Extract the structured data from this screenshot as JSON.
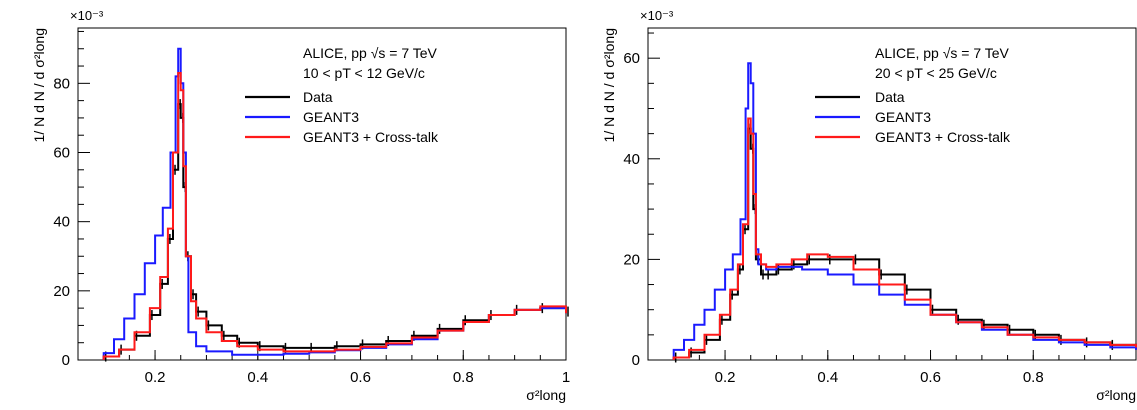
{
  "colors": {
    "data": "#000000",
    "geant3": "#1a1aff",
    "crosstalk": "#ff1a1a"
  },
  "chart_data": [
    {
      "type": "line",
      "exponent_label": "×10⁻³",
      "info_line1": "ALICE, pp √s = 7 TeV",
      "info_line2": "10 < pT < 12 GeV/c",
      "ylabel": "1/ N d N / d σ²long",
      "xlabel": "σ²long",
      "xlim": [
        0.05,
        1.0
      ],
      "ylim": [
        0,
        96
      ],
      "xticks": [
        0.2,
        0.4,
        0.6,
        0.8,
        1
      ],
      "xtick_labels": [
        "0.2",
        "0.4",
        "0.6",
        "0.8",
        "1"
      ],
      "yticks": [
        0,
        20,
        40,
        60,
        80
      ],
      "ytick_labels": [
        "0",
        "20",
        "40",
        "60",
        "80"
      ],
      "legend_position": "top-right",
      "legend": [
        "Data",
        "GEANT3",
        "GEANT3 + Cross-talk"
      ],
      "series": [
        {
          "name": "Data",
          "x": [
            0.1,
            0.13,
            0.16,
            0.19,
            0.21,
            0.225,
            0.235,
            0.245,
            0.25,
            0.255,
            0.26,
            0.27,
            0.28,
            0.3,
            0.33,
            0.36,
            0.4,
            0.45,
            0.5,
            0.55,
            0.6,
            0.65,
            0.7,
            0.75,
            0.8,
            0.85,
            0.9,
            0.95,
            1.0
          ],
          "y": [
            1,
            3,
            7,
            13,
            22,
            35,
            55,
            74,
            70,
            50,
            30,
            19,
            14,
            10,
            7,
            5,
            4,
            3.5,
            3.5,
            4,
            4.5,
            5.5,
            7,
            9,
            11.5,
            13,
            14.5,
            15,
            14
          ]
        },
        {
          "name": "GEANT3",
          "x": [
            0.1,
            0.12,
            0.14,
            0.16,
            0.18,
            0.2,
            0.215,
            0.23,
            0.24,
            0.245,
            0.25,
            0.255,
            0.26,
            0.265,
            0.28,
            0.3,
            0.35,
            0.4,
            0.45,
            0.5,
            0.55,
            0.6,
            0.65,
            0.7,
            0.75,
            0.8,
            0.85,
            0.9,
            0.95,
            1.0
          ],
          "y": [
            2,
            6,
            12,
            19,
            28,
            36,
            44,
            60,
            82,
            90,
            80,
            60,
            30,
            8,
            4,
            2.5,
            1.5,
            1.5,
            1.8,
            2.2,
            2.8,
            3.5,
            4.5,
            6,
            8.5,
            11,
            13,
            14.5,
            15,
            13.5
          ]
        },
        {
          "name": "GEANT3 + Cross-talk",
          "x": [
            0.1,
            0.13,
            0.16,
            0.19,
            0.21,
            0.225,
            0.235,
            0.245,
            0.25,
            0.255,
            0.26,
            0.27,
            0.28,
            0.3,
            0.33,
            0.36,
            0.4,
            0.45,
            0.5,
            0.55,
            0.6,
            0.65,
            0.7,
            0.75,
            0.8,
            0.85,
            0.9,
            0.95,
            1.0
          ],
          "y": [
            1,
            3,
            8,
            15,
            24,
            38,
            60,
            83,
            78,
            56,
            30,
            17,
            12,
            8,
            5.5,
            4,
            3,
            2.5,
            2.5,
            3,
            3.8,
            4.8,
            6.5,
            8.5,
            11,
            13,
            14.5,
            15.5,
            13.5
          ]
        }
      ]
    },
    {
      "type": "line",
      "exponent_label": "×10⁻³",
      "info_line1": "ALICE, pp √s = 7 TeV",
      "info_line2": "20 < pT < 25 GeV/c",
      "ylabel": "1/ N d N / d σ²long",
      "xlabel": "σ²long",
      "xlim": [
        0.05,
        1.0
      ],
      "ylim": [
        0,
        66
      ],
      "xticks": [
        0.2,
        0.4,
        0.6,
        0.8
      ],
      "xtick_labels": [
        "0.2",
        "0.4",
        "0.6",
        "0.8"
      ],
      "yticks": [
        0,
        20,
        40,
        60
      ],
      "ytick_labels": [
        "0",
        "20",
        "40",
        "60"
      ],
      "legend_position": "top-right",
      "legend": [
        "Data",
        "GEANT3",
        "GEANT3 + Cross-talk"
      ],
      "series": [
        {
          "name": "Data",
          "x": [
            0.1,
            0.13,
            0.16,
            0.19,
            0.21,
            0.225,
            0.235,
            0.245,
            0.25,
            0.255,
            0.26,
            0.27,
            0.28,
            0.3,
            0.33,
            0.36,
            0.4,
            0.45,
            0.5,
            0.55,
            0.6,
            0.65,
            0.7,
            0.75,
            0.8,
            0.85,
            0.9,
            0.95,
            1.0
          ],
          "y": [
            0.5,
            1.5,
            4,
            8,
            13,
            18,
            26,
            46,
            42,
            30,
            20,
            17,
            17,
            18,
            19,
            20,
            20,
            20,
            17,
            14,
            10,
            8,
            7,
            6,
            5,
            4,
            3.5,
            3,
            2.5
          ]
        },
        {
          "name": "GEANT3",
          "x": [
            0.1,
            0.12,
            0.14,
            0.16,
            0.18,
            0.2,
            0.215,
            0.23,
            0.24,
            0.245,
            0.25,
            0.255,
            0.26,
            0.265,
            0.28,
            0.3,
            0.35,
            0.4,
            0.45,
            0.5,
            0.55,
            0.6,
            0.65,
            0.7,
            0.75,
            0.8,
            0.85,
            0.9,
            0.95,
            1.0
          ],
          "y": [
            2,
            4,
            7,
            10,
            14,
            18,
            21,
            28,
            50,
            59,
            55,
            45,
            22,
            19,
            18,
            18.5,
            18,
            17,
            15,
            13,
            11,
            9,
            7.5,
            6,
            5,
            4,
            3.5,
            3,
            2.5,
            2
          ]
        },
        {
          "name": "GEANT3 + Cross-talk",
          "x": [
            0.1,
            0.13,
            0.16,
            0.19,
            0.21,
            0.225,
            0.235,
            0.245,
            0.25,
            0.255,
            0.26,
            0.27,
            0.28,
            0.3,
            0.33,
            0.36,
            0.4,
            0.45,
            0.5,
            0.55,
            0.6,
            0.65,
            0.7,
            0.75,
            0.8,
            0.85,
            0.9,
            0.95,
            1.0
          ],
          "y": [
            0.5,
            2,
            5,
            9,
            14,
            19,
            27,
            48,
            45,
            33,
            21,
            19,
            18.5,
            19,
            20,
            21,
            20.5,
            18,
            15,
            12,
            9,
            7.5,
            6.5,
            5,
            4.5,
            4,
            3.5,
            3,
            2.5
          ]
        }
      ]
    }
  ]
}
